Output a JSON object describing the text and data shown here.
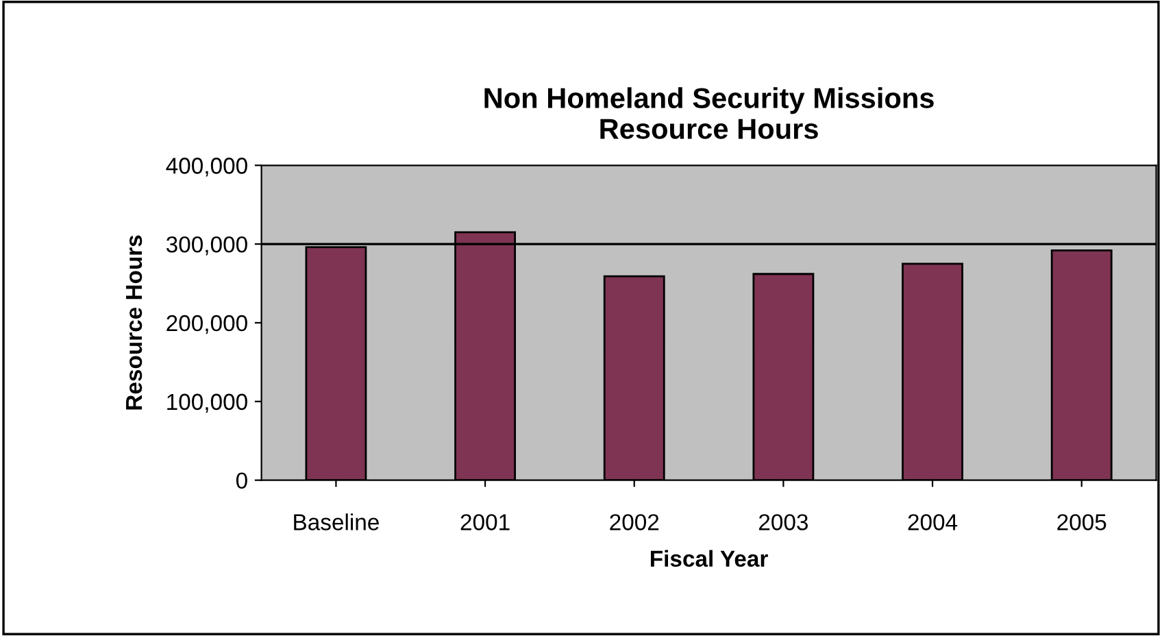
{
  "chart_data": {
    "type": "bar",
    "title": "Non Homeland Security Missions\nResource Hours",
    "xlabel": "Fiscal Year",
    "ylabel": "Resource Hours",
    "categories": [
      "Baseline",
      "2001",
      "2002",
      "2003",
      "2004",
      "2005"
    ],
    "values": [
      296000,
      315000,
      259000,
      262000,
      275000,
      292000
    ],
    "color": "#7e3452",
    "ylim": [
      0,
      400000
    ],
    "yticks": [
      {
        "value": 0,
        "label": "0"
      },
      {
        "value": 100000,
        "label": "100,000"
      },
      {
        "value": 200000,
        "label": "200,000"
      },
      {
        "value": 300000,
        "label": "300,000"
      },
      {
        "value": 400000,
        "label": "400,000"
      }
    ],
    "ref_lines": [
      {
        "axis": "y",
        "value": 300000,
        "label": null,
        "color": "#000000"
      }
    ],
    "grid": false,
    "legend": false
  }
}
